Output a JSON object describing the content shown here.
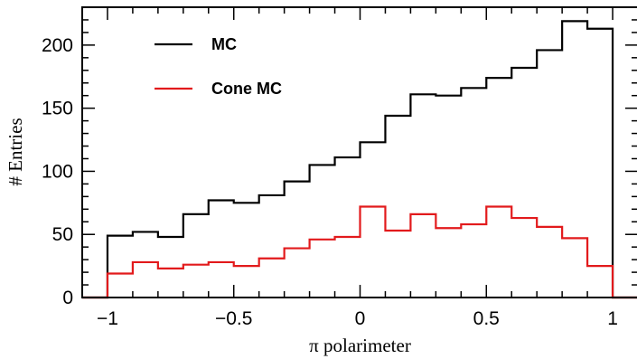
{
  "chart_data": {
    "type": "histogram",
    "xlabel": "π polarimeter",
    "ylabel": "# Entries",
    "xlim": [
      -1.1,
      1.1
    ],
    "ylim": [
      0,
      230
    ],
    "x_ticks": [
      -1,
      -0.5,
      0,
      0.5,
      1
    ],
    "x_tick_labels": [
      "−1",
      "−0.5",
      "0",
      "0.5",
      "1"
    ],
    "y_ticks": [
      0,
      50,
      100,
      150,
      200
    ],
    "y_tick_labels": [
      "0",
      "50",
      "100",
      "150",
      "200"
    ],
    "legend_position": "top-left",
    "bin_edges": [
      -1.1,
      -1.0,
      -0.9,
      -0.8,
      -0.7,
      -0.6,
      -0.5,
      -0.4,
      -0.3,
      -0.2,
      -0.1,
      0.0,
      0.1,
      0.2,
      0.3,
      0.4,
      0.5,
      0.6,
      0.7,
      0.8,
      0.9,
      1.0,
      1.1
    ],
    "series": [
      {
        "name": "MC",
        "color": "#000000",
        "values": [
          0,
          49,
          52,
          48,
          66,
          77,
          75,
          81,
          92,
          105,
          111,
          123,
          144,
          161,
          160,
          166,
          174,
          182,
          196,
          219,
          213,
          0
        ]
      },
      {
        "name": "Cone MC",
        "color": "#e21a1c",
        "values": [
          0,
          19,
          28,
          23,
          26,
          28,
          25,
          31,
          39,
          46,
          48,
          72,
          53,
          66,
          55,
          58,
          72,
          63,
          56,
          47,
          25,
          0
        ]
      }
    ]
  }
}
